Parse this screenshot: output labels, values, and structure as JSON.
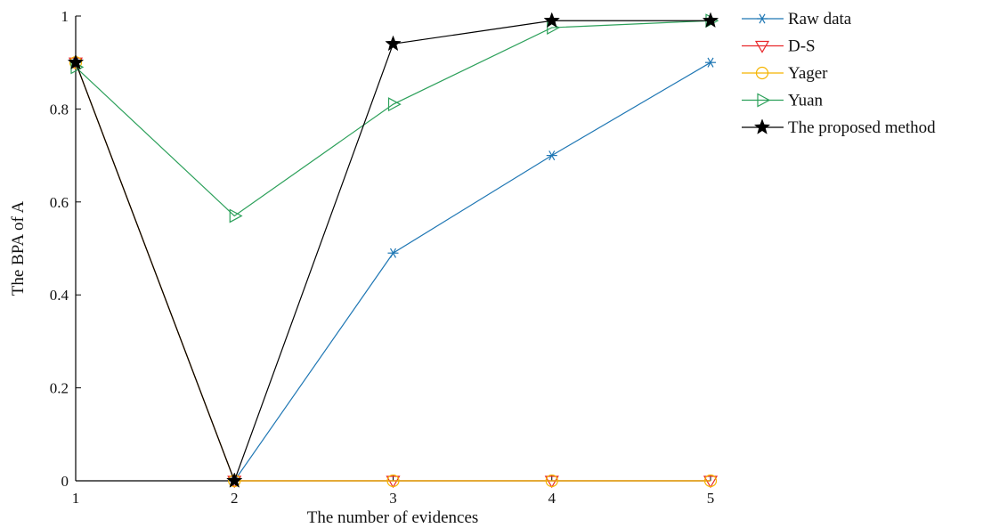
{
  "chart_data": {
    "type": "line",
    "xlabel": "The number of evidences",
    "ylabel": "The BPA of A",
    "x": [
      1,
      2,
      3,
      4,
      5
    ],
    "x_ticks": [
      "1",
      "2",
      "3",
      "4",
      "5"
    ],
    "y_ticks": [
      "0",
      "0.2",
      "0.4",
      "0.6",
      "0.8",
      "1"
    ],
    "xlim": [
      1,
      5
    ],
    "ylim": [
      0,
      1
    ],
    "grid": false,
    "legend_position": "top-right outside",
    "series": [
      {
        "name": "Raw data",
        "values": [
          0.9,
          0.0,
          0.49,
          0.7,
          0.9
        ],
        "color": "#1f77b4",
        "marker": "asterisk"
      },
      {
        "name": "D-S",
        "values": [
          0.9,
          0.0,
          0.0,
          0.0,
          0.0
        ],
        "color": "#e8282b",
        "marker": "triangle-down"
      },
      {
        "name": "Yager",
        "values": [
          0.9,
          0.0,
          0.0,
          0.0,
          0.0
        ],
        "color": "#f5b400",
        "marker": "circle"
      },
      {
        "name": "Yuan",
        "values": [
          0.89,
          0.57,
          0.81,
          0.975,
          0.99
        ],
        "color": "#2ca05a",
        "marker": "triangle-right"
      },
      {
        "name": "The proposed method",
        "values": [
          0.9,
          0.0,
          0.94,
          0.99,
          0.99
        ],
        "color": "#000000",
        "marker": "star"
      }
    ]
  }
}
